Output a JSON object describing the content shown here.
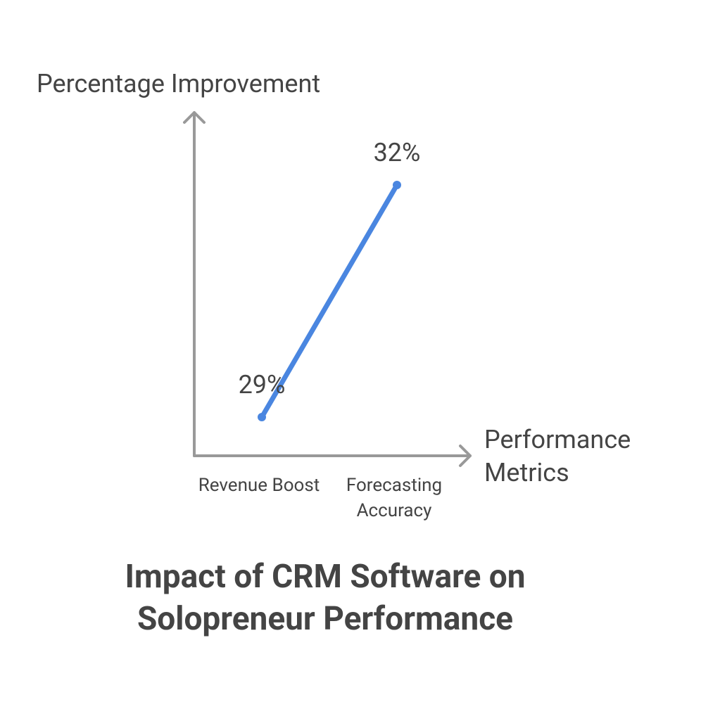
{
  "chart_data": {
    "type": "line",
    "title": "Impact of CRM Software on Solopreneur Performance",
    "y_label": "Percentage Improvement",
    "x_label": "Performance Metrics",
    "categories": [
      "Revenue Boost",
      "Forecasting Accuracy"
    ],
    "values": [
      29,
      32
    ],
    "value_labels": [
      "29%",
      "32%"
    ],
    "color": "#4a86e0",
    "ylim": [
      28.5,
      33
    ]
  }
}
